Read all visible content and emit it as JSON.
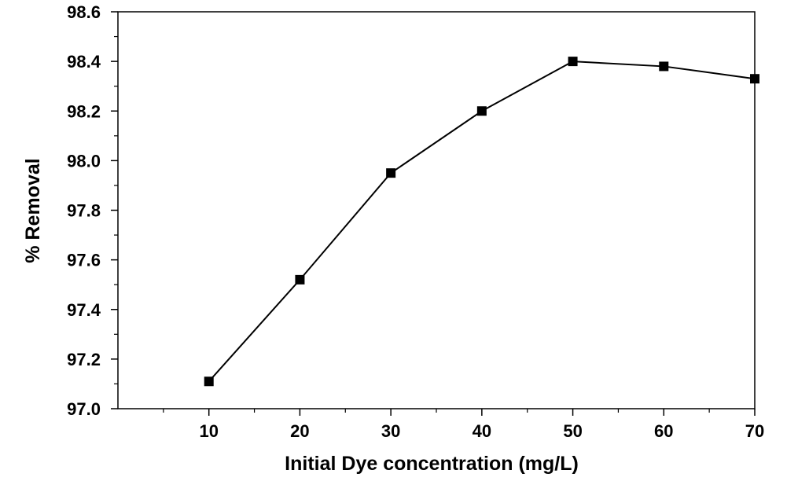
{
  "chart_data": {
    "type": "line",
    "title": "",
    "xlabel": "Initial Dye concentration (mg/L)",
    "ylabel": "% Removal",
    "x": [
      10,
      20,
      30,
      40,
      50,
      60,
      70
    ],
    "series": [
      {
        "values": [
          97.11,
          97.52,
          97.95,
          98.2,
          98.4,
          98.38,
          98.33
        ]
      }
    ],
    "xlim": [
      0,
      70
    ],
    "ylim": [
      97.0,
      98.6
    ],
    "xticks": [
      "10",
      "20",
      "30",
      "40",
      "50",
      "60",
      "70"
    ],
    "yticks": [
      "97.0",
      "97.2",
      "97.4",
      "97.6",
      "97.8",
      "98.0",
      "98.2",
      "98.4",
      "98.6"
    ],
    "marker": "square",
    "grid": false,
    "colors": {
      "line": "#000000",
      "marker": "#000000"
    }
  }
}
